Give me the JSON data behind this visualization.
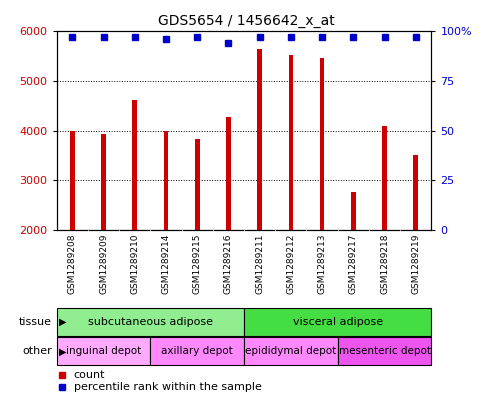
{
  "title": "GDS5654 / 1456642_x_at",
  "samples": [
    "GSM1289208",
    "GSM1289209",
    "GSM1289210",
    "GSM1289214",
    "GSM1289215",
    "GSM1289216",
    "GSM1289211",
    "GSM1289212",
    "GSM1289213",
    "GSM1289217",
    "GSM1289218",
    "GSM1289219"
  ],
  "counts": [
    4000,
    3930,
    4610,
    4000,
    3840,
    4270,
    5640,
    5530,
    5470,
    2770,
    4090,
    3500
  ],
  "percentiles": [
    97,
    97,
    97,
    96,
    97,
    94,
    97,
    97,
    97,
    97,
    97,
    97
  ],
  "bar_color": "#cc0000",
  "dot_color": "#0000cc",
  "ylim_left": [
    2000,
    6000
  ],
  "ylim_right": [
    0,
    100
  ],
  "yticks_left": [
    2000,
    3000,
    4000,
    5000,
    6000
  ],
  "yticks_right": [
    0,
    25,
    50,
    75,
    100
  ],
  "grid_color": "#000000",
  "tissue_row": [
    {
      "label": "subcutaneous adipose",
      "start": 0,
      "end": 6,
      "color": "#90ee90"
    },
    {
      "label": "visceral adipose",
      "start": 6,
      "end": 12,
      "color": "#44dd44"
    }
  ],
  "other_row": [
    {
      "label": "inguinal depot",
      "start": 0,
      "end": 3,
      "color": "#ffaaff"
    },
    {
      "label": "axillary depot",
      "start": 3,
      "end": 6,
      "color": "#ff88ff"
    },
    {
      "label": "epididymal depot",
      "start": 6,
      "end": 9,
      "color": "#ff88ff"
    },
    {
      "label": "mesenteric depot",
      "start": 9,
      "end": 12,
      "color": "#ee55ee"
    }
  ],
  "legend_items": [
    {
      "label": "count",
      "color": "#cc0000"
    },
    {
      "label": "percentile rank within the sample",
      "color": "#0000cc"
    }
  ],
  "bg_color": "#ffffff",
  "tick_label_color_left": "#cc0000",
  "tick_label_color_right": "#0000cc",
  "xtick_bg_color": "#d0d0d0",
  "bar_width": 0.15
}
